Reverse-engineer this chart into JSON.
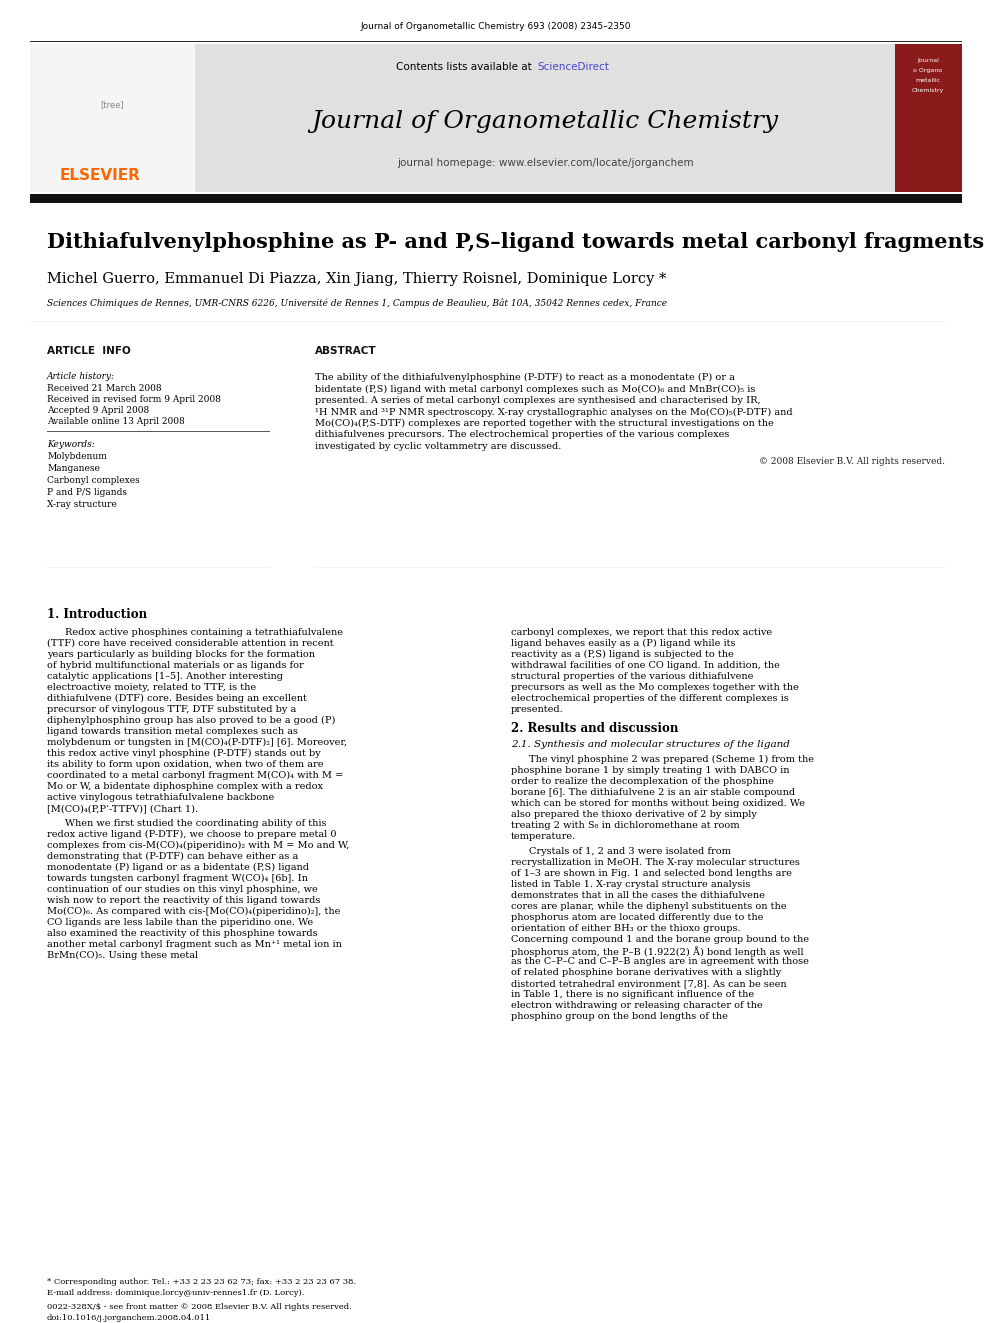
{
  "page_bg": "#ffffff",
  "header_journal_ref": "Journal of Organometallic Chemistry 693 (2008) 2345–2350",
  "header_sciencedirect_color": "#4444cc",
  "journal_name": "Journal of Organometallic Chemistry",
  "journal_homepage": "journal homepage: www.elsevier.com/locate/jorganchem",
  "elsevier_color": "#FF6600",
  "title": "Dithiafulvenylphosphine as P- and P,S–ligand towards metal carbonyl fragments",
  "authors": "Michel Guerro, Emmanuel Di Piazza, Xin Jiang, Thierry Roisnel, Dominique Lorcy *",
  "affiliation": "Sciences Chimiques de Rennes, UMR-CNRS 6226, Université de Rennes 1, Campus de Beaulieu, Bât 10A, 35042 Rennes cedex, France",
  "article_info_label": "ARTICLE  INFO",
  "article_history_label": "Article history:",
  "received": "Received 21 March 2008",
  "received_revised": "Received in revised form 9 April 2008",
  "accepted": "Accepted 9 April 2008",
  "available": "Available online 13 April 2008",
  "keywords_label": "Keywords:",
  "keywords": [
    "Molybdenum",
    "Manganese",
    "Carbonyl complexes",
    "P and P/S ligands",
    "X-ray structure"
  ],
  "abstract_label": "ABSTRACT",
  "abstract_text": "The ability of the dithiafulvenylphosphine (P-DTF) to react as a monodentate (P) or a bidentate (P,S) ligand with metal carbonyl complexes such as Mo(CO)₆ and MnBr(CO)₅ is presented. A series of metal carbonyl complexes are synthesised and characterised by IR, ¹H NMR and ³¹P NMR spectroscopy. X-ray crystallographic analyses on the Mo(CO)₅(P-DTF) and Mo(CO)₄(P,S-DTF) complexes are reported together with the structural investigations on the dithiafulvenes precursors. The electrochemical properties of the various complexes investigated by cyclic voltammetry are discussed.",
  "copyright": "© 2008 Elsevier B.V. All rights reserved.",
  "intro_heading": "1. Introduction",
  "intro_p1": "Redox active phosphines containing a tetrathiafulvalene (TTF) core have received considerable attention in recent years particularly as building blocks for the formation of hybrid multifunctional materials or as ligands for catalytic applications [1–5]. Another interesting electroactive moiety, related to TTF, is the dithiafulvene (DTF) core. Besides being an excellent precursor of vinylogous TTF, DTF substituted by a diphenylphosphino group has also proved to be a good (P) ligand towards transition metal complexes such as molybdenum or tungsten in [M(CO)₄(P-DTF)₂] [6]. Moreover, this redox active vinyl phosphine (P-DTF) stands out by its ability to form upon oxidation, when two of them are coordinated to a metal carbonyl fragment M(CO)₄ with M = Mo or W, a bidentate diphosphine complex with a redox active vinylogous tetrathiafulvalene backbone [M(CO)₄(P,P’-TTFV)] (Chart 1).",
  "intro_p2": "When we first studied the coordinating ability of this redox active ligand (P-DTF), we choose to prepare metal 0 complexes from cis-M(CO)₄(piperidino)₂ with M = Mo and W, demonstrating that (P-DTF) can behave either as a monodentate (P) ligand or as a bidentate (P,S) ligand towards tungsten carbonyl fragment W(CO)₄ [6b]. In continuation of our studies on this vinyl phosphine, we wish now to report the reactivity of this ligand towards Mo(CO)₆. As compared with cis-[Mo(CO)₄(piperidino)₂], the CO ligands are less labile than the piperidino one. We also examined the reactivity of this phosphine towards another metal carbonyl fragment such as Mn⁺¹ metal ion in BrMn(CO)₅. Using these metal",
  "right_col_intro": "carbonyl complexes, we report that this redox active ligand behaves easily as a (P) ligand while its reactivity as a (P,S) ligand is subjected to the withdrawal facilities of one CO ligand. In addition, the structural properties of the various dithiafulvene precursors as well as the Mo complexes together with the electrochemical properties of the different complexes is presented.",
  "results_heading": "2. Results and discussion",
  "results_subheading": "2.1. Synthesis and molecular structures of the ligand",
  "results_p1": "The vinyl phosphine 2 was prepared (Scheme 1) from the phosphine borane 1 by simply treating 1 with DABCO in order to realize the decomplexation of the phosphine borane [6]. The dithiafulvene 2 is an air stable compound which can be stored for months without being oxidized. We also prepared the thioxo derivative of 2 by simply treating 2 with S₈ in dichloromethane at room temperature.",
  "results_p2": "Crystals of 1, 2 and 3 were isolated from recrystallization in MeOH. The X-ray molecular structures of 1–3 are shown in Fig. 1 and selected bond lengths are listed in Table 1. X-ray crystal structure analysis demonstrates that in all the cases the dithiafulvene cores are planar, while the diphenyl substituents on the phosphorus atom are located differently due to the orientation of either BH₃ or the thioxo groups. Concerning compound 1 and the borane group bound to the phosphorus atom, the P–B (1.922(2) Å) bond length as well as the C–P–C and C–P–B angles are in agreement with those of related phosphine borane derivatives with a slightly distorted tetrahedral environment [7,8]. As can be seen in Table 1, there is no significant influence of the electron withdrawing or releasing character of the phosphino group on the bond lengths of the",
  "footnote1": "* Corresponding author. Tel.: +33 2 23 23 62 73; fax: +33 2 23 23 67 38.",
  "footnote2": "E-mail address: dominique.lorcy@univ-rennes1.fr (D. Lorcy).",
  "footnote3": "0022-328X/$ - see front matter © 2008 Elsevier B.V. All rights reserved.",
  "footnote4": "doi:10.1016/j.jorganchem.2008.04.011",
  "header_bg": "#e0e0e0",
  "thick_bar_color": "#111111",
  "cover_bg": "#8B1A1A"
}
